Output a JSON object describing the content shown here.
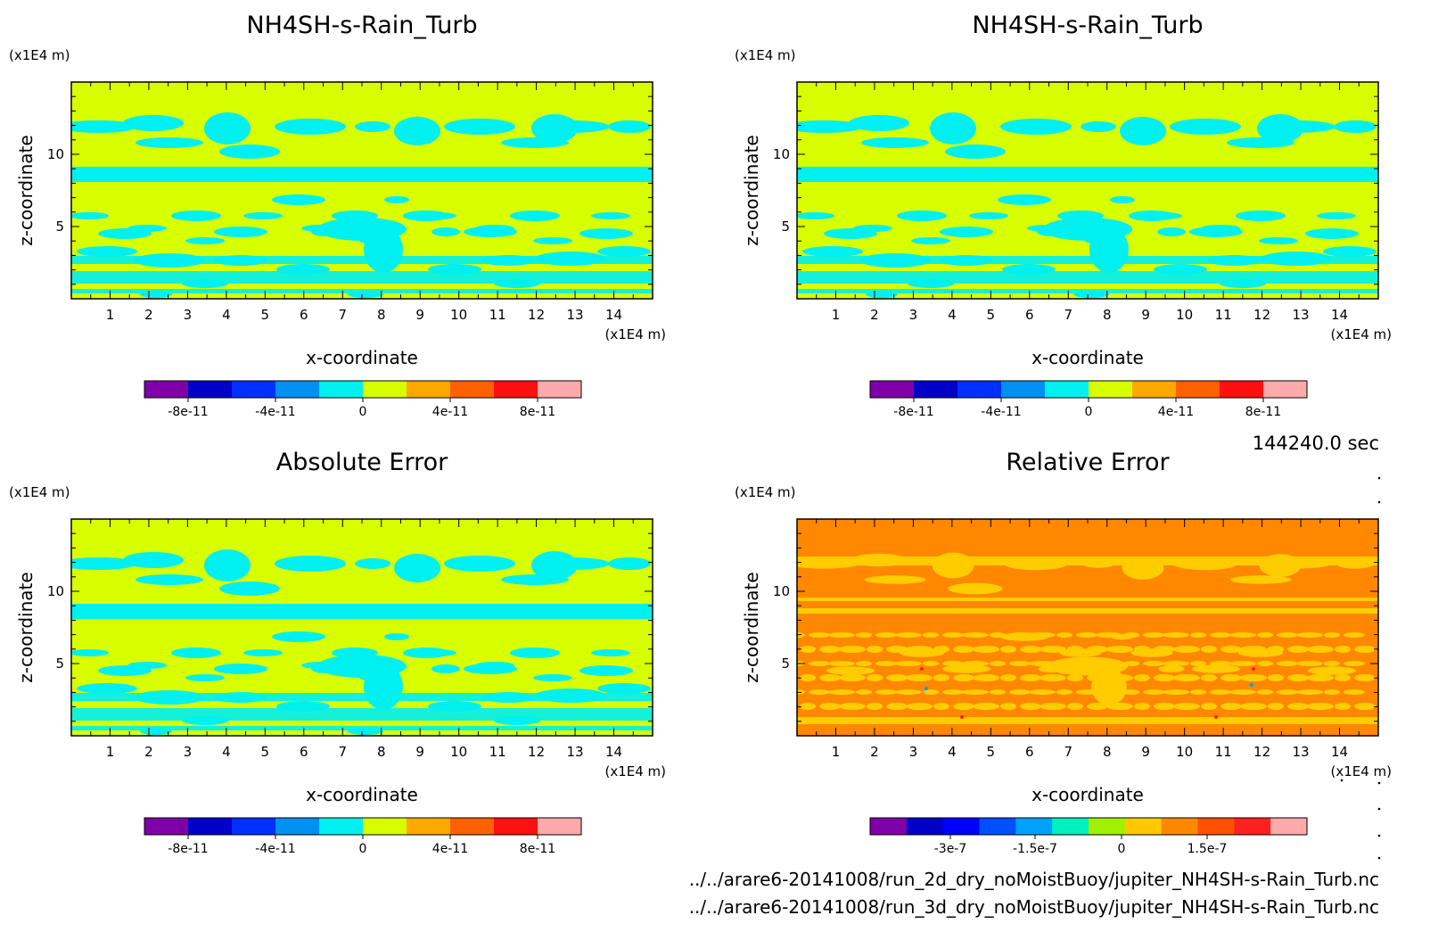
{
  "time_label": "144240.0 sec",
  "footer": {
    "file1": "../../arare6-20141008/run_2d_dry_noMoistBuoy/jupiter_NH4SH-s-Rain_Turb.nc",
    "file2": "../../arare6-20141008/run_3d_dry_noMoistBuoy/jupiter_NH4SH-s-Rain_Turb.nc"
  },
  "colors": {
    "field_background": "#d8ff00",
    "field_pattern": "#00f0f0",
    "rel_background": "#ff8800",
    "rel_pattern": "#ffcc00"
  },
  "chart_data": [
    {
      "type": "heatmap",
      "title": "NH4SH-s-Rain_Turb",
      "xlabel": "x-coordinate",
      "ylabel": "z-coordinate",
      "x_unit": "(x1E4 m)",
      "y_unit": "(x1E4 m)",
      "xlim": [
        0,
        15
      ],
      "ylim": [
        0,
        15
      ],
      "x_ticks": [
        "1",
        "2",
        "3",
        "4",
        "5",
        "6",
        "7",
        "8",
        "9",
        "10",
        "11",
        "12",
        "13",
        "14"
      ],
      "y_ticks": [
        "5",
        "10"
      ],
      "colorbar": {
        "colors": [
          "#7f00a8",
          "#0000c8",
          "#0030ff",
          "#0090f0",
          "#00f0f0",
          "#d8ff00",
          "#ffa800",
          "#ff6000",
          "#ff1010",
          "#ffaaaa"
        ],
        "labels": [
          "-8e-11",
          "-4e-11",
          "0",
          "4e-11",
          "8e-11"
        ]
      }
    },
    {
      "type": "heatmap",
      "title": "NH4SH-s-Rain_Turb",
      "xlabel": "x-coordinate",
      "ylabel": "z-coordinate",
      "x_unit": "(x1E4 m)",
      "y_unit": "(x1E4 m)",
      "xlim": [
        0,
        15
      ],
      "ylim": [
        0,
        15
      ],
      "x_ticks": [
        "1",
        "2",
        "3",
        "4",
        "5",
        "6",
        "7",
        "8",
        "9",
        "10",
        "11",
        "12",
        "13",
        "14"
      ],
      "y_ticks": [
        "5",
        "10"
      ],
      "colorbar": {
        "colors": [
          "#7f00a8",
          "#0000c8",
          "#0030ff",
          "#0090f0",
          "#00f0f0",
          "#d8ff00",
          "#ffa800",
          "#ff6000",
          "#ff1010",
          "#ffaaaa"
        ],
        "labels": [
          "-8e-11",
          "-4e-11",
          "0",
          "4e-11",
          "8e-11"
        ]
      }
    },
    {
      "type": "heatmap",
      "title": "Absolute Error",
      "xlabel": "x-coordinate",
      "ylabel": "z-coordinate",
      "x_unit": "(x1E4 m)",
      "y_unit": "(x1E4 m)",
      "xlim": [
        0,
        15
      ],
      "ylim": [
        0,
        15
      ],
      "x_ticks": [
        "1",
        "2",
        "3",
        "4",
        "5",
        "6",
        "7",
        "8",
        "9",
        "10",
        "11",
        "12",
        "13",
        "14"
      ],
      "y_ticks": [
        "5",
        "10"
      ],
      "colorbar": {
        "colors": [
          "#7f00a8",
          "#0000c8",
          "#0030ff",
          "#0090f0",
          "#00f0f0",
          "#d8ff00",
          "#ffa800",
          "#ff6000",
          "#ff1010",
          "#ffaaaa"
        ],
        "labels": [
          "-8e-11",
          "-4e-11",
          "0",
          "4e-11",
          "8e-11"
        ]
      }
    },
    {
      "type": "heatmap",
      "title": "Relative Error",
      "xlabel": "x-coordinate",
      "ylabel": "z-coordinate",
      "x_unit": "(x1E4 m)",
      "y_unit": "(x1E4 m)",
      "xlim": [
        0,
        15
      ],
      "ylim": [
        0,
        15
      ],
      "x_ticks": [
        "1",
        "2",
        "3",
        "4",
        "5",
        "6",
        "7",
        "8",
        "9",
        "10",
        "11",
        "12",
        "13",
        "14"
      ],
      "y_ticks": [
        "5",
        "10"
      ],
      "colorbar": {
        "colors": [
          "#7f00a8",
          "#0000c8",
          "#0000ff",
          "#0050ff",
          "#00a0ff",
          "#00f0c0",
          "#a0f000",
          "#ffc800",
          "#ff8800",
          "#ff5000",
          "#ff2020",
          "#ffaaaa"
        ],
        "labels": [
          "-3e-7",
          "-1.5e-7",
          "0",
          "1.5e-7"
        ]
      }
    }
  ]
}
